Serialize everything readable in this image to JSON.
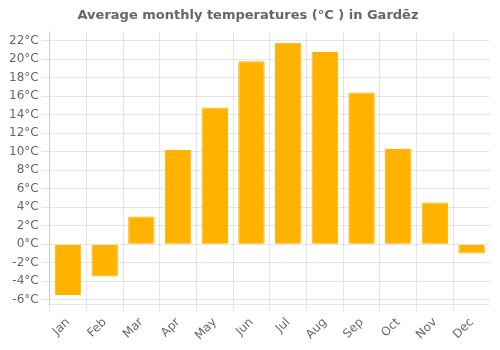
{
  "chart_data": {
    "type": "bar",
    "title": "Average monthly temperatures (°C ) in Gardēz",
    "categories": [
      "Jan",
      "Feb",
      "Mar",
      "Apr",
      "May",
      "Jun",
      "Jul",
      "Aug",
      "Sep",
      "Oct",
      "Nov",
      "Dec"
    ],
    "values": [
      -5.5,
      -3.5,
      3.0,
      10.2,
      14.8,
      19.8,
      21.8,
      20.8,
      16.4,
      10.3,
      4.5,
      -1.0
    ],
    "color": "#FFB300",
    "ylim": [
      -6.5,
      23.0
    ],
    "yticks": [
      {
        "value": -6,
        "label": "-6°C"
      },
      {
        "value": -4,
        "label": "-4°C"
      },
      {
        "value": -2,
        "label": "-2°C"
      },
      {
        "value": 0,
        "label": "0°C"
      },
      {
        "value": 2,
        "label": "2°C"
      },
      {
        "value": 4,
        "label": "4°C"
      },
      {
        "value": 6,
        "label": "6°C"
      },
      {
        "value": 8,
        "label": "8°C"
      },
      {
        "value": 10,
        "label": "10°C"
      },
      {
        "value": 12,
        "label": "12°C"
      },
      {
        "value": 14,
        "label": "14°C"
      },
      {
        "value": 16,
        "label": "16°C"
      },
      {
        "value": 18,
        "label": "18°C"
      },
      {
        "value": 20,
        "label": "20°C"
      },
      {
        "value": 22,
        "label": "22°C"
      }
    ],
    "grid": true
  }
}
